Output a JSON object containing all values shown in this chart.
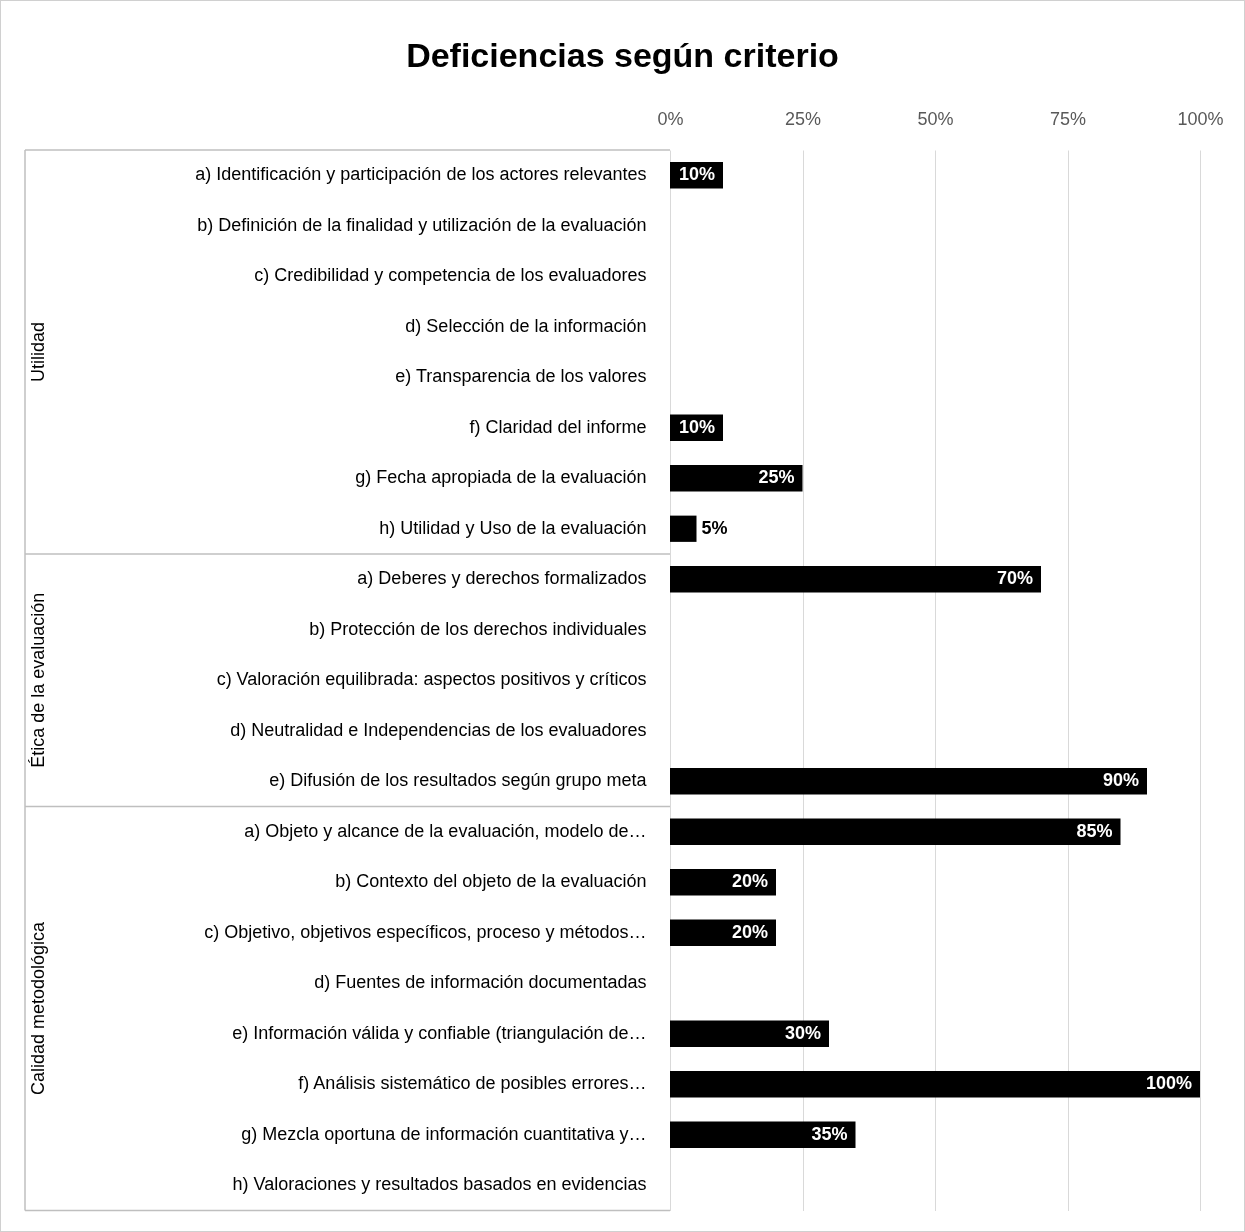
{
  "chart_data": {
    "type": "bar",
    "orientation": "horizontal",
    "title": "Deficiencias según criterio",
    "categories": [
      "a) Identificación y participación de los actores relevantes",
      "b) Definición de la finalidad y utilización de la evaluación",
      "c) Credibilidad y competencia de los evaluadores",
      "d) Selección de la información",
      "e) Transparencia de los valores",
      "f) Claridad del informe",
      "g) Fecha apropiada de la evaluación",
      "h) Utilidad y Uso de la evaluación",
      "a) Deberes y derechos formalizados",
      "b) Protección de los derechos individuales",
      "c) Valoración equilibrada: aspectos positivos y críticos",
      "d) Neutralidad e Independencias de los evaluadores",
      "e) Difusión de los resultados según grupo meta",
      "a) Objeto y alcance de la evaluación, modelo de…",
      "b) Contexto del objeto de la evaluación",
      "c) Objetivo, objetivos específicos, proceso y métodos…",
      "d) Fuentes de información documentadas",
      "e) Información válida y confiable (triangulación de…",
      "f) Análisis sistemático de posibles errores…",
      "g) Mezcla oportuna de información cuantitativa y…",
      "h) Valoraciones y resultados basados en evidencias"
    ],
    "values": [
      10,
      null,
      null,
      null,
      null,
      10,
      25,
      5,
      70,
      null,
      null,
      null,
      90,
      85,
      20,
      20,
      null,
      30,
      100,
      35,
      null
    ],
    "value_labels": [
      "10%",
      null,
      null,
      null,
      null,
      "10%",
      "25%",
      "5%",
      "70%",
      null,
      null,
      null,
      "90%",
      "85%",
      "20%",
      "20%",
      null,
      "30%",
      "100%",
      "35%",
      null
    ],
    "color": "#000000",
    "xlim": [
      0,
      100
    ],
    "xticks": [
      {
        "value": 0,
        "label": "0%"
      },
      {
        "value": 25,
        "label": "25%"
      },
      {
        "value": 50,
        "label": "50%"
      },
      {
        "value": 75,
        "label": "75%"
      },
      {
        "value": 100,
        "label": "100%"
      }
    ],
    "grid": "x",
    "annotations": [
      "Utilidad",
      "Ética de la evaluación",
      "Calidad metodológica"
    ]
  }
}
